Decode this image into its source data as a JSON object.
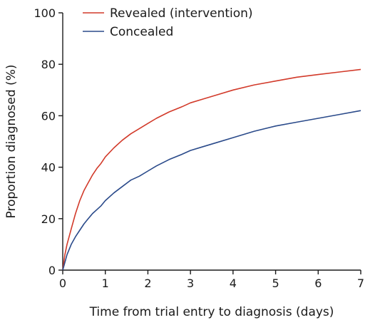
{
  "chart_data": {
    "type": "line",
    "title": "",
    "xlabel": "Time from trial entry to diagnosis (days)",
    "ylabel": "Proportion diagnosed (%)",
    "xlim": [
      0,
      7
    ],
    "ylim": [
      0,
      100
    ],
    "xticks": [
      0,
      1,
      2,
      3,
      4,
      5,
      6,
      7
    ],
    "yticks": [
      0,
      20,
      40,
      60,
      80,
      100
    ],
    "grid": false,
    "legend_position": "top-left",
    "series": [
      {
        "name": "Revealed (intervention)",
        "color": "#d23a2a",
        "x": [
          0,
          0.05,
          0.1,
          0.2,
          0.3,
          0.4,
          0.5,
          0.6,
          0.7,
          0.8,
          0.9,
          1.0,
          1.2,
          1.4,
          1.6,
          1.8,
          2.0,
          2.2,
          2.5,
          2.8,
          3.0,
          3.3,
          3.6,
          4.0,
          4.5,
          5.0,
          5.5,
          6.0,
          6.5,
          7.0
        ],
        "y": [
          0,
          6,
          10,
          16,
          22,
          27,
          31,
          34,
          37,
          39.5,
          41.5,
          44,
          47.5,
          50.5,
          53,
          55,
          57,
          59,
          61.5,
          63.5,
          65,
          66.5,
          68,
          70,
          72,
          73.5,
          75,
          76,
          77,
          78
        ]
      },
      {
        "name": "Concealed",
        "color": "#2a4a8a",
        "x": [
          0,
          0.05,
          0.1,
          0.2,
          0.3,
          0.4,
          0.5,
          0.6,
          0.7,
          0.8,
          0.9,
          1.0,
          1.2,
          1.4,
          1.6,
          1.8,
          2.0,
          2.2,
          2.5,
          2.8,
          3.0,
          3.3,
          3.6,
          4.0,
          4.5,
          5.0,
          5.5,
          6.0,
          6.5,
          7.0
        ],
        "y": [
          0,
          3,
          6,
          10,
          13,
          15.5,
          18,
          20,
          22,
          23.5,
          25,
          27,
          30,
          32.5,
          35,
          36.5,
          38.5,
          40.5,
          43,
          45,
          46.5,
          48,
          49.5,
          51.5,
          54,
          56,
          57.5,
          59,
          60.5,
          62
        ]
      }
    ]
  }
}
